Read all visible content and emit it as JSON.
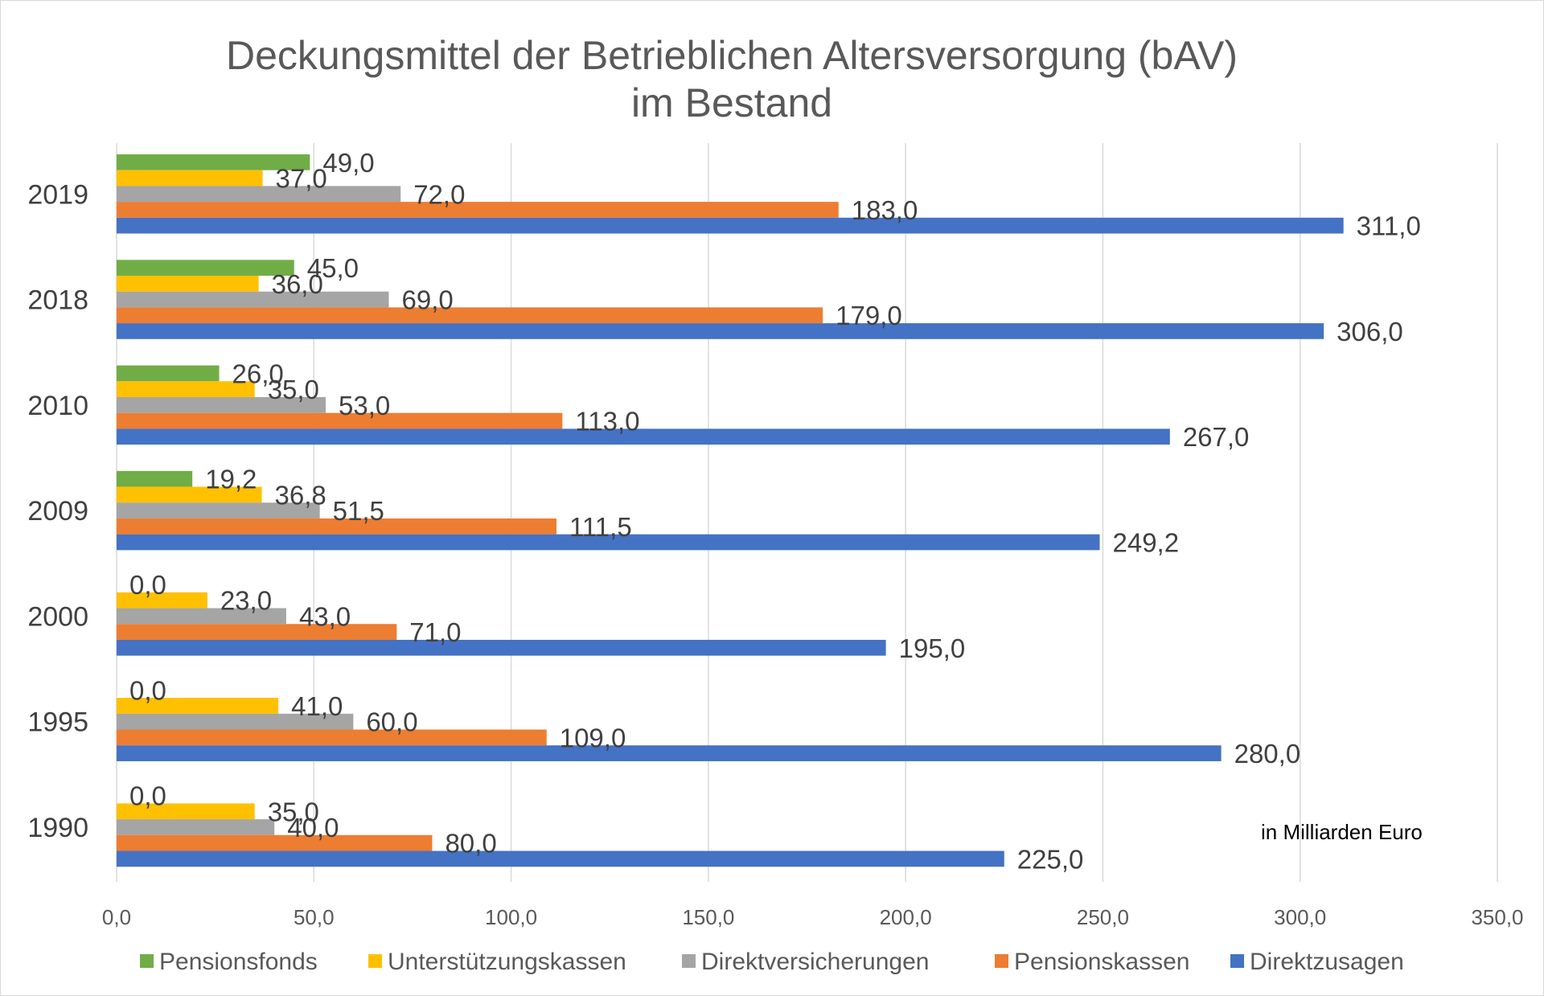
{
  "chart_data": {
    "type": "bar",
    "orientation": "horizontal",
    "title": "Deckungsmittel der Betrieblichen Altersversorgung (bAV)",
    "subtitle": "im Bestand",
    "note": "in Milliarden Euro",
    "categories": [
      "2019",
      "2018",
      "2010",
      "2009",
      "2000",
      "1995",
      "1990"
    ],
    "series": [
      {
        "name": "Pensionsfonds",
        "color": "#70ad47",
        "values": [
          49.0,
          45.0,
          26.0,
          19.2,
          0.0,
          0.0,
          0.0
        ],
        "labels": [
          "49,0",
          "45,0",
          "26,0",
          "19,2",
          "0,0",
          "0,0",
          "0,0"
        ]
      },
      {
        "name": "Unterstützungskassen",
        "color": "#ffc000",
        "values": [
          37.0,
          36.0,
          35.0,
          36.8,
          23.0,
          41.0,
          35.0
        ],
        "labels": [
          "37,0",
          "36,0",
          "35,0",
          "36,8",
          "23,0",
          "41,0",
          "35,0"
        ]
      },
      {
        "name": "Direktversicherungen",
        "color": "#a5a5a5",
        "values": [
          72.0,
          69.0,
          53.0,
          51.5,
          43.0,
          60.0,
          40.0
        ],
        "labels": [
          "72,0",
          "69,0",
          "53,0",
          "51,5",
          "43,0",
          "60,0",
          "40,0"
        ]
      },
      {
        "name": "Pensionskassen",
        "color": "#ed7d31",
        "values": [
          183.0,
          179.0,
          113.0,
          111.5,
          71.0,
          109.0,
          80.0
        ],
        "labels": [
          "183,0",
          "179,0",
          "113,0",
          "111,5",
          "71,0",
          "109,0",
          "80,0"
        ]
      },
      {
        "name": "Direktzusagen",
        "color": "#4472c4",
        "values": [
          311.0,
          306.0,
          267.0,
          249.2,
          195.0,
          280.0,
          225.0
        ],
        "labels": [
          "311,0",
          "306,0",
          "267,0",
          "249,2",
          "195,0",
          "280,0",
          "225,0"
        ]
      }
    ],
    "xlim": [
      0,
      350
    ],
    "x_ticks": [
      0,
      50,
      100,
      150,
      200,
      250,
      300,
      350
    ],
    "x_tick_labels": [
      "0,0",
      "50,0",
      "100,0",
      "150,0",
      "200,0",
      "250,0",
      "300,0",
      "350,0"
    ],
    "grid": true,
    "legend_position": "bottom"
  }
}
